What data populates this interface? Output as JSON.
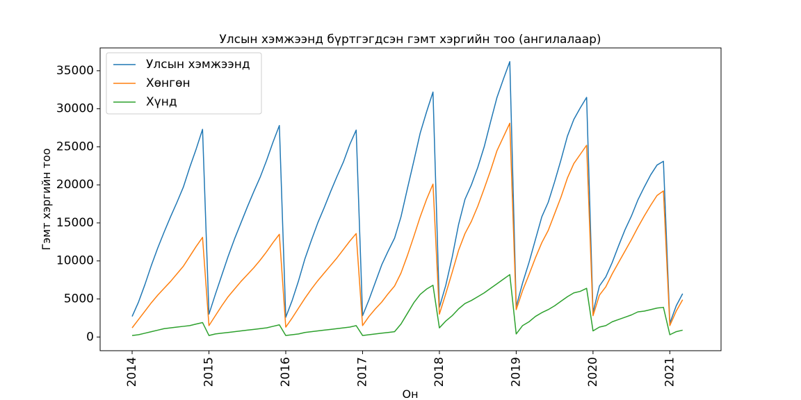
{
  "chart_data": {
    "type": "line",
    "title": "Улсын хэмжээнд бүртгэгдсэн гэмт хэргийн тоо (ангилалаар)",
    "xlabel": "Он",
    "ylabel": "Гэмт хэргийн тоо",
    "x_ticks": [
      "2014",
      "2015",
      "2016",
      "2017",
      "2018",
      "2019",
      "2020",
      "2021"
    ],
    "y_ticks": [
      0,
      5000,
      10000,
      15000,
      20000,
      25000,
      30000,
      35000
    ],
    "ylim": [
      -1800,
      38000
    ],
    "xlim": [
      "2013-08",
      "2021-09"
    ],
    "grid": false,
    "legend_position": "upper-left",
    "x": [
      "2014-01",
      "2014-02",
      "2014-03",
      "2014-04",
      "2014-05",
      "2014-06",
      "2014-07",
      "2014-08",
      "2014-09",
      "2014-10",
      "2014-11",
      "2014-12",
      "2015-01",
      "2015-02",
      "2015-03",
      "2015-04",
      "2015-05",
      "2015-06",
      "2015-07",
      "2015-08",
      "2015-09",
      "2015-10",
      "2015-11",
      "2015-12",
      "2016-01",
      "2016-02",
      "2016-03",
      "2016-04",
      "2016-05",
      "2016-06",
      "2016-07",
      "2016-08",
      "2016-09",
      "2016-10",
      "2016-11",
      "2016-12",
      "2017-01",
      "2017-02",
      "2017-03",
      "2017-04",
      "2017-05",
      "2017-06",
      "2017-07",
      "2017-08",
      "2017-09",
      "2017-10",
      "2017-11",
      "2017-12",
      "2018-01",
      "2018-02",
      "2018-03",
      "2018-04",
      "2018-05",
      "2018-06",
      "2018-07",
      "2018-08",
      "2018-09",
      "2018-10",
      "2018-11",
      "2018-12",
      "2019-01",
      "2019-02",
      "2019-03",
      "2019-04",
      "2019-05",
      "2019-06",
      "2019-07",
      "2019-08",
      "2019-09",
      "2019-10",
      "2019-11",
      "2019-12",
      "2020-01",
      "2020-02",
      "2020-03",
      "2020-04",
      "2020-05",
      "2020-06",
      "2020-07",
      "2020-08",
      "2020-09",
      "2020-10",
      "2020-11",
      "2020-12",
      "2021-01",
      "2021-02",
      "2021-03"
    ],
    "series": [
      {
        "name": "Улсын хэмжээнд",
        "color": "#1f77b4",
        "values": [
          2700,
          4600,
          6900,
          9400,
          11700,
          13800,
          15800,
          17700,
          19700,
          22300,
          24700,
          27300,
          3000,
          5600,
          8100,
          10600,
          12900,
          15000,
          17100,
          19100,
          21000,
          23200,
          25600,
          27800,
          2600,
          4800,
          7400,
          10300,
          12700,
          15000,
          17000,
          19100,
          21100,
          23000,
          25300,
          27200,
          2800,
          4900,
          7200,
          9500,
          11300,
          13000,
          15800,
          19500,
          23100,
          26800,
          29600,
          32200,
          3900,
          6800,
          10500,
          14800,
          18100,
          20000,
          22300,
          25000,
          28300,
          31500,
          33900,
          36200,
          4000,
          7100,
          9800,
          12800,
          15800,
          17700,
          20400,
          23300,
          26400,
          28600,
          30100,
          31500,
          3200,
          6700,
          7900,
          9800,
          12000,
          14100,
          15900,
          18000,
          19700,
          21300,
          22600,
          23100,
          1800,
          4100,
          5700
        ]
      },
      {
        "name": "Хөнгөн",
        "color": "#ff7f0e",
        "values": [
          1200,
          2300,
          3400,
          4500,
          5500,
          6400,
          7300,
          8300,
          9300,
          10600,
          11900,
          13100,
          1500,
          2800,
          4100,
          5300,
          6300,
          7300,
          8200,
          9100,
          10100,
          11200,
          12400,
          13500,
          1300,
          2500,
          3800,
          5100,
          6300,
          7400,
          8400,
          9400,
          10400,
          11500,
          12600,
          13600,
          1500,
          2700,
          3700,
          4600,
          5700,
          6700,
          8400,
          10700,
          13200,
          15800,
          18100,
          20100,
          3000,
          5700,
          8500,
          11400,
          13600,
          15200,
          17200,
          19500,
          21900,
          24500,
          26300,
          28100,
          3600,
          6100,
          8200,
          10400,
          12400,
          14000,
          16200,
          18400,
          20900,
          22800,
          24000,
          25200,
          2800,
          5500,
          6600,
          8300,
          9800,
          11300,
          12800,
          14400,
          15900,
          17300,
          18600,
          19200,
          1500,
          3400,
          4900
        ]
      },
      {
        "name": "Хүнд",
        "color": "#2ca02c",
        "values": [
          200,
          300,
          500,
          700,
          900,
          1100,
          1200,
          1300,
          1400,
          1500,
          1700,
          1900,
          200,
          400,
          500,
          600,
          700,
          800,
          900,
          1000,
          1100,
          1200,
          1400,
          1600,
          200,
          300,
          400,
          600,
          700,
          800,
          900,
          1000,
          1100,
          1200,
          1300,
          1500,
          200,
          300,
          400,
          500,
          600,
          700,
          1700,
          3100,
          4500,
          5600,
          6300,
          6800,
          1200,
          2100,
          2800,
          3700,
          4400,
          4800,
          5300,
          5800,
          6400,
          7000,
          7600,
          8200,
          400,
          1500,
          2000,
          2700,
          3200,
          3600,
          4100,
          4700,
          5300,
          5800,
          6000,
          6400,
          800,
          1300,
          1500,
          2000,
          2300,
          2600,
          2900,
          3300,
          3400,
          3600,
          3800,
          3900,
          300,
          700,
          900
        ]
      }
    ]
  }
}
